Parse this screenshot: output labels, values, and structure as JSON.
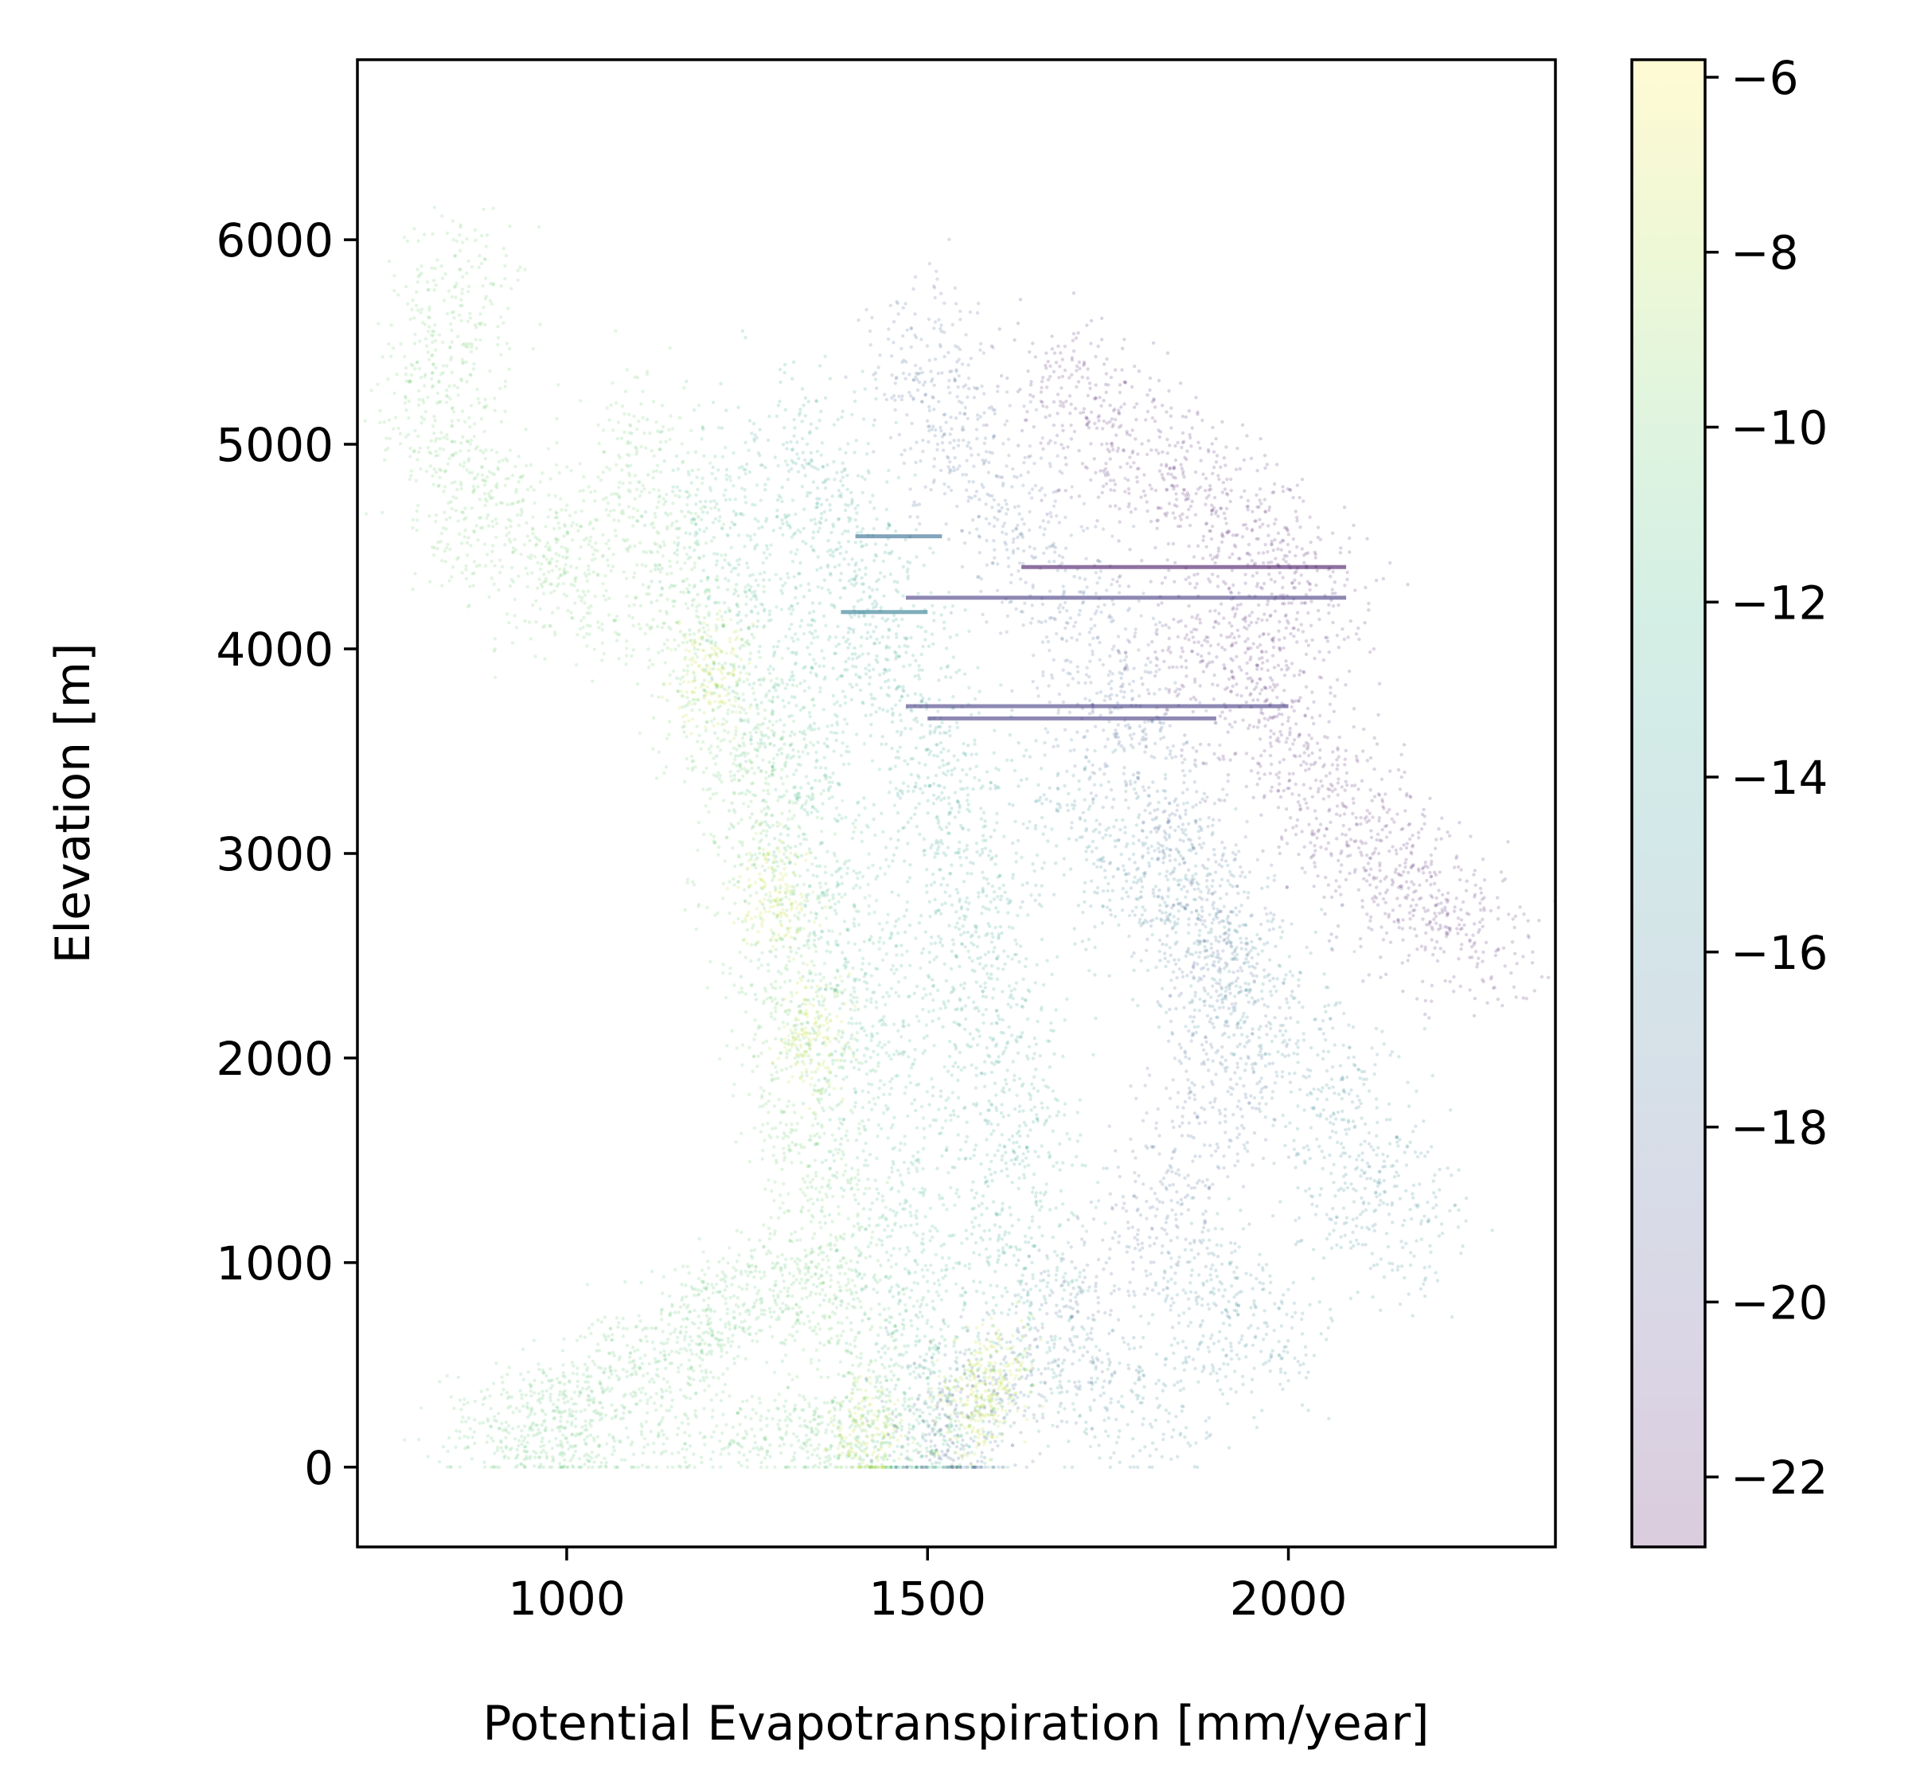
{
  "chart_data": {
    "type": "scatter",
    "title": "",
    "xlabel": "Potential Evapotranspiration [mm/year]",
    "ylabel": "Elevation [m]",
    "xlim": [
      710,
      2370
    ],
    "ylim": [
      -390,
      6880
    ],
    "xticks": [
      1000,
      1500,
      2000
    ],
    "xtick_labels": [
      "1000",
      "1500",
      "2000"
    ],
    "yticks": [
      0,
      1000,
      2000,
      3000,
      4000,
      5000,
      6000
    ],
    "ytick_labels": [
      "0",
      "1000",
      "2000",
      "3000",
      "4000",
      "5000",
      "6000"
    ],
    "grid": false,
    "legend": "none",
    "colorbar": {
      "label": "",
      "colormap": "viridis",
      "alpha": 0.2,
      "range": [
        -22.8,
        -5.8
      ],
      "ticks": [
        -22,
        -20,
        -18,
        -16,
        -14,
        -12,
        -10,
        -8,
        -6
      ],
      "tick_labels": [
        "−22",
        "−20",
        "−18",
        "−16",
        "−14",
        "−12",
        "−10",
        "−8",
        "−6"
      ]
    },
    "point_clusters": [
      {
        "value": -10.0,
        "points": [
          [
            840,
            4900
          ],
          [
            820,
            5300
          ],
          [
            850,
            5700
          ],
          [
            900,
            4600
          ],
          [
            980,
            4450
          ],
          [
            1050,
            4400
          ],
          [
            1100,
            4900
          ],
          [
            1150,
            4300
          ],
          [
            1200,
            3800
          ],
          [
            1250,
            3500
          ],
          [
            1270,
            3000
          ],
          [
            1300,
            2500
          ],
          [
            1320,
            2000
          ],
          [
            1340,
            1500
          ],
          [
            1360,
            1000
          ],
          [
            1380,
            600
          ]
        ],
        "spread": [
          45,
          230
        ]
      },
      {
        "value": -10.5,
        "points": [
          [
            920,
            200
          ],
          [
            1000,
            300
          ],
          [
            1080,
            450
          ],
          [
            1150,
            600
          ],
          [
            1220,
            750
          ],
          [
            1280,
            900
          ],
          [
            1000,
            100
          ],
          [
            1200,
            150
          ],
          [
            1350,
            150
          ],
          [
            1420,
            150
          ]
        ],
        "spread": [
          55,
          130
        ]
      },
      {
        "value": -11.8,
        "points": [
          [
            1200,
            4700
          ],
          [
            1250,
            4300
          ],
          [
            1300,
            3900
          ],
          [
            1320,
            3500
          ],
          [
            1360,
            3100
          ],
          [
            1380,
            2600
          ],
          [
            1420,
            2200
          ],
          [
            1440,
            1700
          ],
          [
            1460,
            1200
          ],
          [
            1480,
            800
          ],
          [
            1500,
            400
          ],
          [
            1500,
            150
          ]
        ],
        "spread": [
          50,
          230
        ]
      },
      {
        "value": -13.5,
        "points": [
          [
            1330,
            5000
          ],
          [
            1380,
            4600
          ],
          [
            1420,
            4200
          ],
          [
            1460,
            3900
          ],
          [
            1500,
            3500
          ],
          [
            1540,
            3100
          ],
          [
            1560,
            2700
          ],
          [
            1580,
            2300
          ],
          [
            1600,
            1900
          ],
          [
            1620,
            1500
          ],
          [
            1640,
            1000
          ],
          [
            1650,
            500
          ]
        ],
        "spread": [
          50,
          230
        ]
      },
      {
        "value": -15.5,
        "points": [
          [
            1700,
            3200
          ],
          [
            1800,
            2900
          ],
          [
            1880,
            2600
          ],
          [
            1960,
            2300
          ],
          [
            2040,
            1900
          ],
          [
            2100,
            1500
          ],
          [
            2150,
            1200
          ],
          [
            1900,
            900
          ],
          [
            1950,
            600
          ],
          [
            1800,
            300
          ]
        ],
        "spread": [
          55,
          200
        ]
      },
      {
        "value": -18.0,
        "points": [
          [
            1500,
            5400
          ],
          [
            1550,
            5000
          ],
          [
            1620,
            4600
          ],
          [
            1700,
            4200
          ],
          [
            1760,
            3800
          ],
          [
            1820,
            3400
          ],
          [
            1860,
            3000
          ],
          [
            1900,
            2600
          ],
          [
            1920,
            2200
          ],
          [
            1890,
            1700
          ],
          [
            1820,
            1200
          ],
          [
            1700,
            700
          ],
          [
            1580,
            350
          ],
          [
            1520,
            150
          ]
        ],
        "spread": [
          45,
          220
        ]
      },
      {
        "value": -22.0,
        "points": [
          [
            1700,
            5300
          ],
          [
            1780,
            5000
          ],
          [
            1860,
            4800
          ],
          [
            1940,
            4600
          ],
          [
            2020,
            4300
          ],
          [
            1880,
            4100
          ],
          [
            1960,
            3900
          ],
          [
            1980,
            3600
          ],
          [
            2060,
            3300
          ],
          [
            2120,
            3000
          ],
          [
            2180,
            2800
          ],
          [
            2240,
            2600
          ]
        ],
        "spread": [
          55,
          180
        ]
      },
      {
        "value": -7.5,
        "points": [
          [
            1200,
            3900
          ],
          [
            1290,
            2800
          ],
          [
            1340,
            2100
          ],
          [
            1560,
            300
          ],
          [
            1600,
            450
          ],
          [
            1420,
            150
          ]
        ],
        "spread": [
          25,
          140
        ]
      }
    ],
    "horizontal_bands": [
      {
        "value": -22.0,
        "y": 4400,
        "x0": 1630,
        "x1": 2080
      },
      {
        "value": -20.0,
        "y": 4250,
        "x0": 1470,
        "x1": 2080
      },
      {
        "value": -20.0,
        "y": 3720,
        "x0": 1470,
        "x1": 2000
      },
      {
        "value": -20.0,
        "y": 3660,
        "x0": 1500,
        "x1": 1900
      },
      {
        "value": -17.0,
        "y": 4550,
        "x0": 1400,
        "x1": 1520
      },
      {
        "value": -16.0,
        "y": 4180,
        "x0": 1380,
        "x1": 1500
      }
    ]
  }
}
